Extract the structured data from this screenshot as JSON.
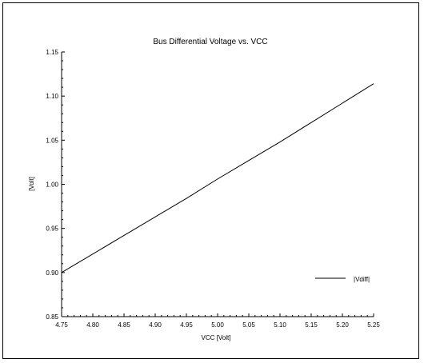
{
  "chart_data": {
    "type": "line",
    "title": "Bus Differential Voltage vs. VCC",
    "xlabel": "VCC [Volt]",
    "ylabel": "[Volt]",
    "xlim": [
      4.75,
      5.25
    ],
    "ylim": [
      0.85,
      1.15
    ],
    "xticks": [
      "4.75",
      "4.80",
      "4.85",
      "4.90",
      "4.95",
      "5.00",
      "5.05",
      "5.10",
      "5.15",
      "5.20",
      "5.25"
    ],
    "yticks": [
      "0.85",
      "0.90",
      "0.95",
      "1.00",
      "1.05",
      "1.10",
      "1.15"
    ],
    "grid": false,
    "legend_position": "bottom-right",
    "series": [
      {
        "name": "|Vdiff|",
        "color": "#000000",
        "x": [
          4.75,
          4.8,
          4.85,
          4.9,
          4.95,
          5.0,
          5.05,
          5.1,
          5.15,
          5.2,
          5.25
        ],
        "y": [
          0.9,
          0.921,
          0.942,
          0.963,
          0.984,
          1.006,
          1.027,
          1.048,
          1.07,
          1.092,
          1.114
        ]
      }
    ]
  }
}
